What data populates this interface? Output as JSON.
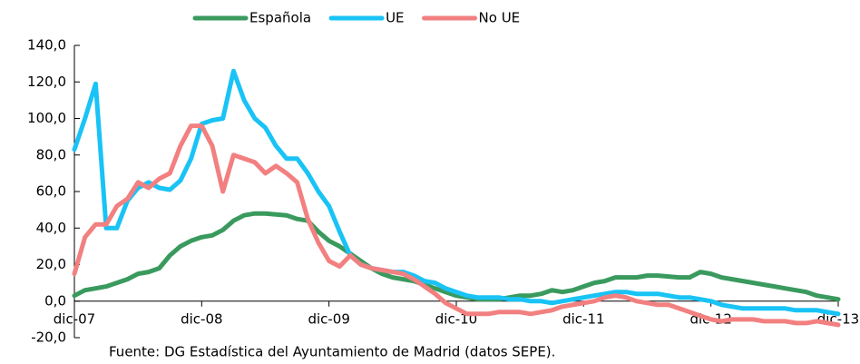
{
  "chart_data": {
    "type": "line",
    "categories": [
      "dic-07",
      null,
      null,
      null,
      null,
      null,
      null,
      null,
      null,
      null,
      null,
      null,
      "dic-08",
      null,
      null,
      null,
      null,
      null,
      null,
      null,
      null,
      null,
      null,
      null,
      "dic-09",
      null,
      null,
      null,
      null,
      null,
      null,
      null,
      null,
      null,
      null,
      null,
      "dic-10",
      null,
      null,
      null,
      null,
      null,
      null,
      null,
      null,
      null,
      null,
      null,
      "dic-11",
      null,
      null,
      null,
      null,
      null,
      null,
      null,
      null,
      null,
      null,
      null,
      "dic-12",
      null,
      null,
      null,
      null,
      null,
      null,
      null,
      null,
      null,
      null,
      null,
      "dic-13"
    ],
    "series": [
      {
        "name": "Española",
        "color": "#3a9a5e",
        "values": [
          3,
          6,
          7,
          8,
          10,
          12,
          15,
          16,
          18,
          25,
          30,
          33,
          35,
          36,
          39,
          44,
          47,
          48,
          48,
          47.5,
          47,
          45,
          44,
          38,
          33,
          30,
          26,
          22,
          18,
          15,
          13,
          12,
          11,
          9,
          7,
          5,
          3,
          2,
          1,
          1,
          1,
          2,
          3,
          3,
          4,
          6,
          5,
          6,
          8,
          10,
          11,
          13,
          13,
          13,
          14,
          14,
          13.5,
          13,
          13,
          16,
          15,
          13,
          12,
          11,
          10,
          9,
          8,
          7,
          6,
          5,
          3,
          2,
          1
        ]
      },
      {
        "name": "UE",
        "color": "#19c3f5",
        "values": [
          83,
          100,
          119,
          40,
          40,
          55,
          62,
          65,
          62,
          61,
          66,
          78,
          97,
          99,
          100,
          126,
          110,
          100,
          95,
          85,
          78,
          78,
          70,
          60,
          52,
          38,
          25,
          20,
          18,
          17,
          16,
          16,
          14,
          11,
          10,
          7,
          5,
          3,
          2,
          2,
          2,
          1,
          1,
          0,
          0,
          -1,
          0,
          1,
          2,
          3,
          4,
          5,
          5,
          4,
          4,
          4,
          3,
          2,
          2,
          1,
          0,
          -2,
          -3,
          -4,
          -4,
          -4,
          -4,
          -4,
          -5,
          -5,
          -5,
          -6,
          -7
        ]
      },
      {
        "name": "No UE",
        "color": "#f28080",
        "values": [
          15,
          35,
          42,
          42,
          52,
          56,
          65,
          62,
          67,
          70,
          85,
          96,
          96,
          85,
          60,
          80,
          78,
          76,
          70,
          74,
          70,
          65,
          45,
          32,
          22,
          19,
          25,
          20,
          18,
          17,
          16,
          15,
          12,
          8,
          4,
          -1,
          -4,
          -7,
          -7,
          -7,
          -6,
          -6,
          -6,
          -7,
          -6,
          -5,
          -3,
          -2,
          -1,
          0,
          2,
          3,
          2,
          0,
          -1,
          -2,
          -2,
          -4,
          -6,
          -8,
          -10,
          -11,
          -10,
          -10,
          -10,
          -11,
          -11,
          -11,
          -12,
          -12,
          -11,
          -12,
          -13
        ]
      }
    ],
    "ylim": [
      -20,
      140
    ],
    "yticks": [
      {
        "value": -20,
        "label": "-20,0"
      },
      {
        "value": 0,
        "label": "0,0"
      },
      {
        "value": 20,
        "label": "20,0"
      },
      {
        "value": 40,
        "label": "40,0"
      },
      {
        "value": 60,
        "label": "60,0"
      },
      {
        "value": 80,
        "label": "80,0"
      },
      {
        "value": 100,
        "label": "100,0"
      },
      {
        "value": 120,
        "label": "120,0"
      },
      {
        "value": 140,
        "label": "140,0"
      }
    ],
    "legend": "top",
    "source": "Fuente: DG Estadística del Ayuntamiento de Madrid (datos SEPE)."
  }
}
